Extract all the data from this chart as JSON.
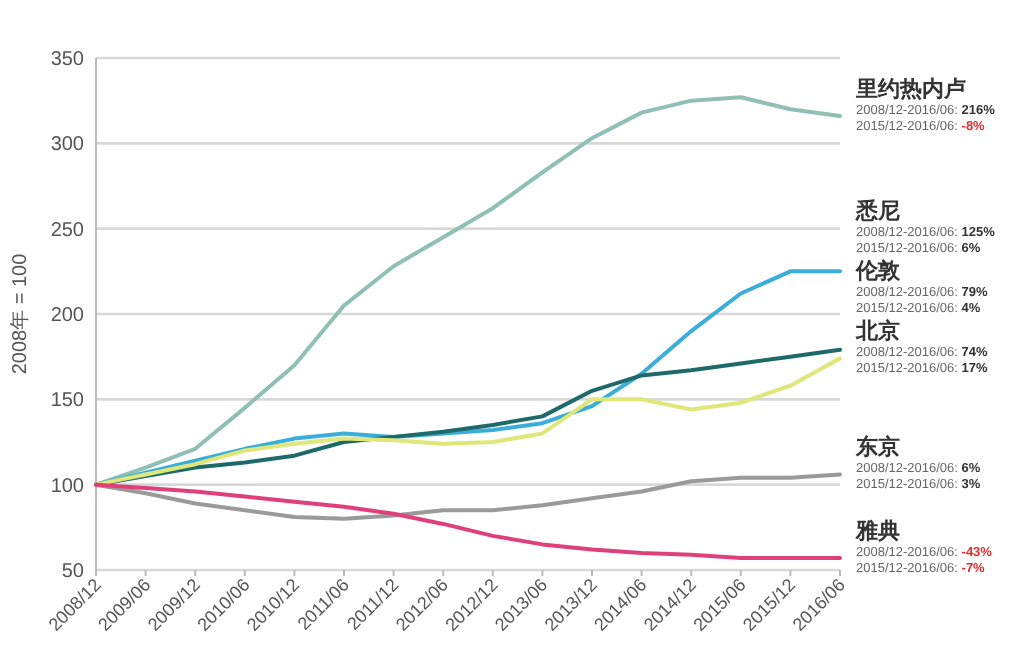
{
  "chart_data": {
    "type": "line",
    "ylabel": "2008年 = 100",
    "categories": [
      "2008/12",
      "2009/06",
      "2009/12",
      "2010/06",
      "2010/12",
      "2011/06",
      "2011/12",
      "2012/06",
      "2012/12",
      "2013/06",
      "2013/12",
      "2014/06",
      "2014/12",
      "2015/06",
      "2015/12",
      "2016/06"
    ],
    "series": [
      {
        "name": "里约热内卢",
        "color": "#8fbfb5",
        "values": [
          100,
          110,
          121,
          145,
          170,
          205,
          228,
          245,
          262,
          283,
          303,
          318,
          325,
          327,
          320,
          316
        ]
      },
      {
        "name": "悉尼",
        "color": "#3aaed8",
        "values": [
          100,
          107,
          114,
          121,
          127,
          130,
          128,
          130,
          132,
          136,
          146,
          165,
          190,
          212,
          225,
          225
        ]
      },
      {
        "name": "伦敦",
        "color": "#1e6a6a",
        "values": [
          100,
          105,
          110,
          113,
          117,
          125,
          128,
          131,
          135,
          140,
          155,
          164,
          167,
          171,
          175,
          179
        ]
      },
      {
        "name": "北京",
        "color": "#dfe67a",
        "values": [
          100,
          106,
          112,
          120,
          124,
          127,
          126,
          124,
          125,
          130,
          150,
          150,
          144,
          148,
          158,
          174
        ]
      },
      {
        "name": "东京",
        "color": "#9a9a9a",
        "values": [
          100,
          95,
          89,
          85,
          81,
          80,
          82,
          85,
          85,
          88,
          92,
          96,
          102,
          104,
          104,
          106
        ]
      },
      {
        "name": "雅典",
        "color": "#e0407a",
        "values": [
          100,
          98,
          96,
          93,
          90,
          87,
          83,
          77,
          70,
          65,
          62,
          60,
          59,
          57,
          57,
          57
        ]
      }
    ],
    "annotations": [
      "2008/12-2016/06: 216%",
      "2015/12-2016/06: -8%",
      "2008/12-2016/06: 125%",
      "2015/12-2016/06: 6%",
      "2008/12-2016/06: 79%",
      "2015/12-2016/06: 4%",
      "2008/12-2016/06: 74%",
      "2015/12-2016/06: 17%",
      "2008/12-2016/06: 6%",
      "2015/12-2016/06: 3%",
      "2008/12-2016/06: -43%",
      "2015/12-2016/06: -7%"
    ],
    "ylim": [
      50,
      350
    ],
    "yticks": [
      50,
      100,
      150,
      200,
      250,
      300,
      350
    ],
    "grid": "y",
    "marker": "none",
    "line_style": "solid"
  }
}
